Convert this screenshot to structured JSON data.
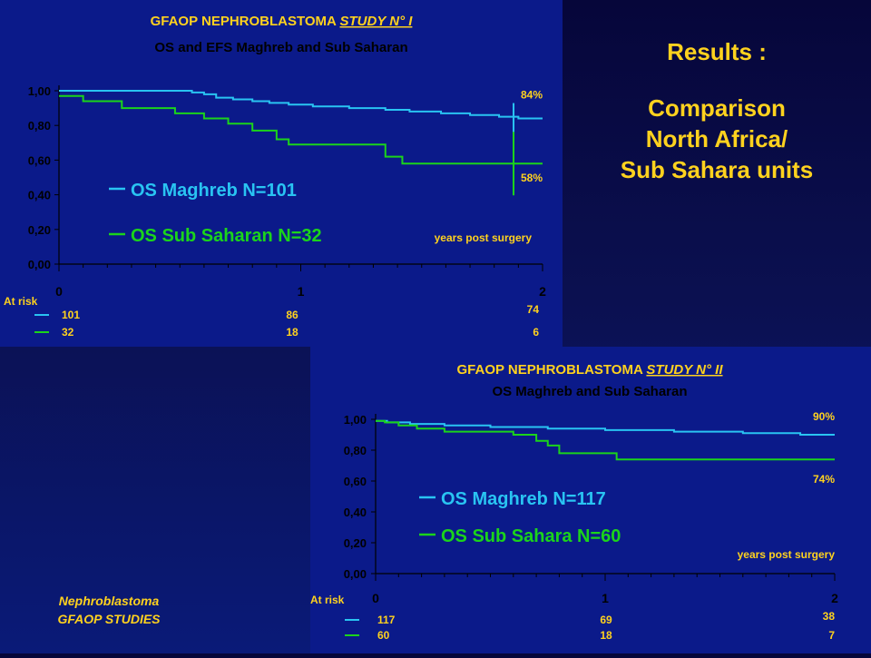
{
  "results": {
    "heading": "Results :",
    "lines": [
      "Comparison",
      "North Africa/",
      "Sub Sahara units"
    ]
  },
  "footer": {
    "line1": "Nephroblastoma",
    "line2": "GFAOP STUDIES"
  },
  "colors": {
    "maghreb": "#29c4f2",
    "subsahara": "#1bd41b",
    "title": "#ffd21e",
    "axis": "#000000",
    "text": "#000000"
  },
  "chart_data": [
    {
      "type": "line",
      "title": "GFAOP NEPHROBLASTOMA STUDY N° I",
      "title_plain": "GFAOP NEPHROBLASTOMA ",
      "title_underlined": "STUDY N° I",
      "subtitle": "OS and EFS Maghreb and Sub Saharan",
      "xlabel": "years post surgery",
      "ylabel": "",
      "xlim": [
        0,
        2
      ],
      "ylim": [
        0,
        1
      ],
      "yticks": [
        "0,00",
        "0,20",
        "0,40",
        "0,60",
        "0,80",
        "1,00"
      ],
      "xticks": [
        "0",
        "1",
        "2"
      ],
      "series": [
        {
          "name": "OS Maghreb N=101",
          "color": "#29c4f2",
          "x": [
            0,
            0.5,
            0.55,
            0.6,
            0.65,
            0.72,
            0.8,
            0.87,
            0.95,
            1.05,
            1.2,
            1.35,
            1.45,
            1.58,
            1.7,
            1.82,
            1.9,
            2.0
          ],
          "y": [
            1.0,
            1.0,
            0.99,
            0.98,
            0.96,
            0.95,
            0.94,
            0.93,
            0.92,
            0.91,
            0.9,
            0.89,
            0.88,
            0.87,
            0.86,
            0.85,
            0.84,
            0.84
          ],
          "end_label": "84%"
        },
        {
          "name": "OS Sub Saharan N=32",
          "color": "#1bd41b",
          "x": [
            0,
            0.1,
            0.26,
            0.48,
            0.6,
            0.7,
            0.8,
            0.9,
            0.95,
            1.35,
            1.42,
            1.9,
            2.0
          ],
          "y": [
            0.97,
            0.94,
            0.9,
            0.87,
            0.84,
            0.81,
            0.77,
            0.72,
            0.69,
            0.62,
            0.58,
            0.58,
            0.58
          ],
          "end_label": "58%"
        }
      ],
      "at_risk": {
        "label": "At risk",
        "rows": [
          {
            "series": "OS Maghreb N=101",
            "values": [
              "101",
              "86",
              "74"
            ]
          },
          {
            "series": "OS Sub Saharan N=32",
            "values": [
              "32",
              "18",
              "6"
            ]
          }
        ]
      }
    },
    {
      "type": "line",
      "title": "GFAOP NEPHROBLASTOMA STUDY N° II",
      "title_plain": "GFAOP NEPHROBLASTOMA ",
      "title_underlined": "STUDY N° II",
      "subtitle": "OS Maghreb and Sub Saharan",
      "xlabel": "years post surgery",
      "ylabel": "",
      "xlim": [
        0,
        2
      ],
      "ylim": [
        0,
        1
      ],
      "yticks": [
        "0,00",
        "0,20",
        "0,40",
        "0,60",
        "0,80",
        "1,00"
      ],
      "xticks": [
        "0",
        "1",
        "2"
      ],
      "series": [
        {
          "name": "OS Maghreb N=117",
          "color": "#29c4f2",
          "x": [
            0,
            0.05,
            0.15,
            0.3,
            0.5,
            0.75,
            1.0,
            1.3,
            1.6,
            1.85,
            2.0
          ],
          "y": [
            0.99,
            0.98,
            0.97,
            0.96,
            0.95,
            0.94,
            0.93,
            0.92,
            0.91,
            0.9,
            0.9
          ],
          "end_label": "90%"
        },
        {
          "name": "OS Sub Sahara N=60",
          "color": "#1bd41b",
          "x": [
            0,
            0.04,
            0.1,
            0.18,
            0.3,
            0.6,
            0.7,
            0.75,
            0.8,
            1.05,
            2.0
          ],
          "y": [
            0.99,
            0.98,
            0.96,
            0.94,
            0.92,
            0.9,
            0.86,
            0.83,
            0.78,
            0.74,
            0.74
          ],
          "end_label": "74%"
        }
      ],
      "at_risk": {
        "label": "At risk",
        "rows": [
          {
            "series": "OS Maghreb N=117",
            "values": [
              "117",
              "69",
              "38"
            ]
          },
          {
            "series": "OS Sub Sahara N=60",
            "values": [
              "60",
              "18",
              "7"
            ]
          }
        ]
      }
    }
  ]
}
